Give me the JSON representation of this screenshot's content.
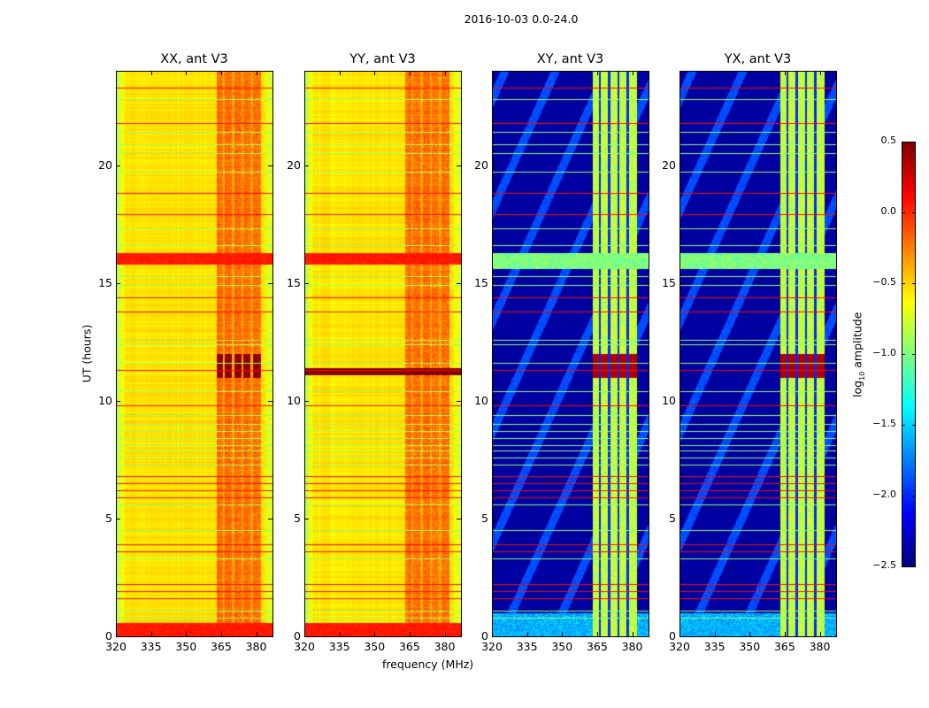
{
  "suptitle": "2016-10-03 0.0-24.0",
  "chart_data": {
    "type": "heatmap",
    "title": "2016-10-03 0.0-24.0",
    "xlabel": "frequency (MHz)",
    "ylabel": "UT (hours)",
    "xlim": [
      320,
      387
    ],
    "ylim": [
      0,
      24
    ],
    "xticks": [
      "320",
      "335",
      "350",
      "365",
      "380"
    ],
    "yticks": [
      "0",
      "5",
      "10",
      "15",
      "20"
    ],
    "colormap": "jet",
    "panels": [
      {
        "title": "XX, ant V3",
        "kind": "auto",
        "baseline_log10": -0.55,
        "band_log10": -0.25,
        "strong_rows_hours": [
          [
            15.8,
            16.3
          ],
          [
            0.0,
            0.6
          ]
        ],
        "saturated_in_band_hours": [
          11.0,
          12.0
        ]
      },
      {
        "title": "YY, ant V3",
        "kind": "auto",
        "baseline_log10": -0.55,
        "band_log10": -0.25,
        "strong_rows_hours": [
          [
            15.8,
            16.3
          ],
          [
            0.0,
            0.6
          ]
        ],
        "saturated_full_row_hours": [
          11.1,
          11.4
        ]
      },
      {
        "title": "XY, ant V3",
        "kind": "cross",
        "baseline_log10": -2.4,
        "band_log10": -0.8,
        "strong_rows_hours": [
          [
            15.6,
            16.3
          ]
        ],
        "saturated_in_band_hours": [
          11.0,
          12.0
        ]
      },
      {
        "title": "YX, ant V3",
        "kind": "cross",
        "baseline_log10": -2.4,
        "band_log10": -0.8,
        "strong_rows_hours": [
          [
            15.6,
            16.3
          ]
        ],
        "saturated_in_band_hours": [
          11.0,
          12.0
        ]
      }
    ],
    "rfi_band_mhz": [
      363,
      382
    ],
    "rfi_band_gaps_mhz": [
      366,
      370,
      374,
      378
    ],
    "horizontal_lines_red_hours": [
      23.3,
      21.8,
      18.8,
      17.9,
      14.4,
      13.8,
      11.3,
      9.8,
      6.8,
      6.5,
      6.2,
      5.9,
      3.9,
      3.6,
      2.2,
      1.9,
      1.6
    ],
    "horizontal_lines_green_hours": [
      22.8,
      21.4,
      20.9,
      20.5,
      19.7,
      17.3,
      16.6,
      15.3,
      14.9,
      12.6,
      12.4,
      11.6,
      10.4,
      9.4,
      9.0,
      8.7,
      8.4,
      8.1,
      7.9,
      7.6,
      7.3,
      5.6,
      4.5,
      3.3,
      1.1,
      0.8
    ],
    "colorbar": {
      "label": "log10 amplitude",
      "label_main": "log",
      "label_sub": "10",
      "label_rest": " amplitude",
      "range": [
        -2.5,
        0.5
      ],
      "ticks": [
        "0.5",
        "0.0",
        "−0.5",
        "−1.0",
        "−1.5",
        "−2.0",
        "−2.5"
      ],
      "tick_values": [
        0.5,
        0.0,
        -0.5,
        -1.0,
        -1.5,
        -2.0,
        -2.5
      ]
    }
  }
}
